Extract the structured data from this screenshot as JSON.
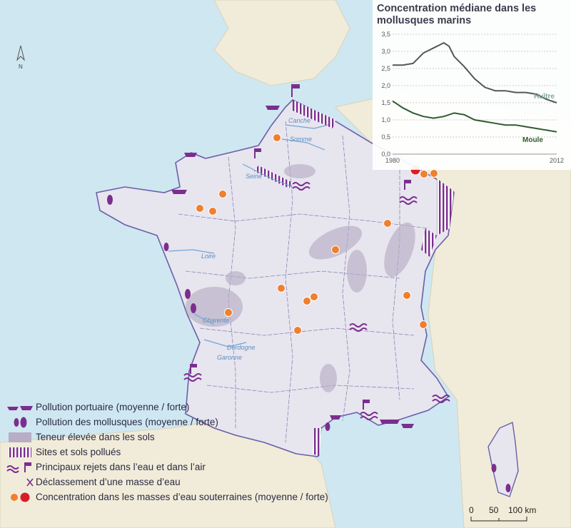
{
  "compass": {
    "label": "N"
  },
  "rivers": [
    "Canche",
    "Somme",
    "Seine",
    "Loire",
    "Charente",
    "Dordogne",
    "Garonne"
  ],
  "legend": [
    {
      "icon": "port-pollution-icon",
      "label": "Pollution portuaire (moyenne / forte)"
    },
    {
      "icon": "mollusc-pollution-icon",
      "label": "Pollution des mollusques (moyenne / forte)"
    },
    {
      "icon": "soil-content-icon",
      "label": "Teneur élevée dans les sols"
    },
    {
      "icon": "polluted-sites-icon",
      "label": "Sites et sols pollués"
    },
    {
      "icon": "emissions-icon",
      "label": "Principaux rejets dans l’eau et dans l’air"
    },
    {
      "icon": "downgrade-icon",
      "label": "Déclassement d’une masse d’eau"
    },
    {
      "icon": "groundwater-icon",
      "label": "Concentration dans les masses d’eau souterraines (moyenne / forte)"
    }
  ],
  "scale": {
    "labels": [
      "0",
      "50",
      "100 km"
    ]
  },
  "colors": {
    "purple": "#7b2e8e",
    "orange": "#f07f2e",
    "red": "#d81e2a",
    "land": "#e7e5ee",
    "sea": "#cfe7f1",
    "huitre": "#555555",
    "moule": "#2f5a2f"
  },
  "chart_data": {
    "type": "line",
    "title": "Concentration médiane dans les mollusques marins",
    "xlabel": "",
    "ylabel": "",
    "x_ticks": [
      "1980",
      "2012"
    ],
    "y_ticks": [
      "0,0",
      "0,5",
      "1,0",
      "1,5",
      "2,0",
      "2,5",
      "3,0",
      "3,5"
    ],
    "xlim": [
      1980,
      2012
    ],
    "ylim": [
      0,
      3.5
    ],
    "grid": true,
    "series": [
      {
        "name": "Huître",
        "x": [
          1980,
          1982,
          1984,
          1986,
          1988,
          1990,
          1991,
          1992,
          1994,
          1996,
          1998,
          2000,
          2002,
          2004,
          2006,
          2008,
          2010,
          2012
        ],
        "values": [
          2.6,
          2.6,
          2.65,
          2.95,
          3.1,
          3.25,
          3.15,
          2.85,
          2.55,
          2.2,
          1.95,
          1.85,
          1.85,
          1.8,
          1.8,
          1.75,
          1.6,
          1.5
        ]
      },
      {
        "name": "Moule",
        "x": [
          1980,
          1982,
          1984,
          1986,
          1988,
          1990,
          1992,
          1994,
          1996,
          1998,
          2000,
          2002,
          2004,
          2006,
          2008,
          2010,
          2012
        ],
        "values": [
          1.55,
          1.35,
          1.2,
          1.1,
          1.05,
          1.1,
          1.2,
          1.15,
          1.0,
          0.95,
          0.9,
          0.85,
          0.85,
          0.8,
          0.75,
          0.7,
          0.65
        ]
      }
    ]
  }
}
